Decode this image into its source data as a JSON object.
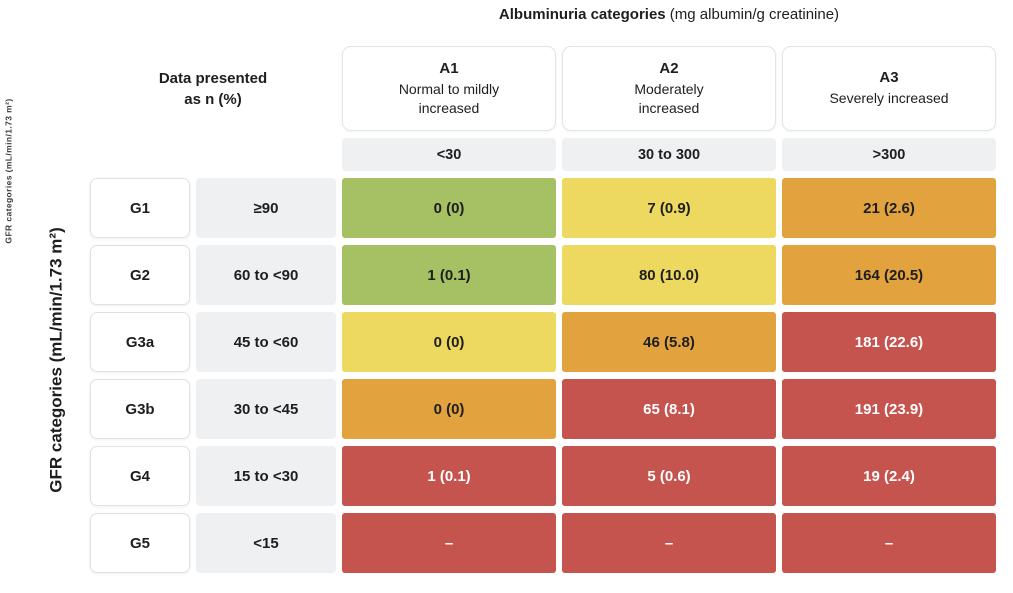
{
  "title": {
    "bold": "Albuminuria categories",
    "normal": " (mg albumin/g creatinine)"
  },
  "axis": {
    "gfr_label_large": "GFR categories (mL/min/1.73 m²)",
    "gfr_label_small": "GFR categories (mL/min/1.73 m²)",
    "data_note_line1": "Data presented",
    "data_note_line2": "as n (%)"
  },
  "columns": [
    {
      "code": "A1",
      "description": "Normal to mildly increased",
      "range": "<30"
    },
    {
      "code": "A2",
      "description": "Moderately increased",
      "range": "30 to 300"
    },
    {
      "code": "A3",
      "description": "Severely increased",
      "range": ">300"
    }
  ],
  "rows": [
    {
      "code": "G1",
      "range": "≥90",
      "cells": [
        {
          "value": "0 (0)",
          "level": "green"
        },
        {
          "value": "7 (0.9)",
          "level": "yellow"
        },
        {
          "value": "21 (2.6)",
          "level": "orange"
        }
      ]
    },
    {
      "code": "G2",
      "range": "60 to <90",
      "cells": [
        {
          "value": "1 (0.1)",
          "level": "green"
        },
        {
          "value": "80 (10.0)",
          "level": "yellow"
        },
        {
          "value": "164 (20.5)",
          "level": "orange"
        }
      ]
    },
    {
      "code": "G3a",
      "range": "45 to <60",
      "cells": [
        {
          "value": "0 (0)",
          "level": "yellow"
        },
        {
          "value": "46 (5.8)",
          "level": "orange"
        },
        {
          "value": "181 (22.6)",
          "level": "red"
        }
      ]
    },
    {
      "code": "G3b",
      "range": "30 to <45",
      "cells": [
        {
          "value": "0 (0)",
          "level": "orange"
        },
        {
          "value": "65 (8.1)",
          "level": "red"
        },
        {
          "value": "191 (23.9)",
          "level": "red"
        }
      ]
    },
    {
      "code": "G4",
      "range": "15 to <30",
      "cells": [
        {
          "value": "1 (0.1)",
          "level": "red"
        },
        {
          "value": "5 (0.6)",
          "level": "red"
        },
        {
          "value": "19 (2.4)",
          "level": "red"
        }
      ]
    },
    {
      "code": "G5",
      "range": "<15",
      "cells": [
        {
          "value": "–",
          "level": "red"
        },
        {
          "value": "–",
          "level": "red"
        },
        {
          "value": "–",
          "level": "red"
        }
      ]
    }
  ],
  "colors": {
    "green": "#a6c064",
    "yellow": "#edd960",
    "orange": "#e2a33f",
    "red": "#c5534e",
    "cell_gray": "#eef0f1",
    "text_dark": "#1e1e1e",
    "text_on_dark": "#ffffff"
  },
  "chart_data": {
    "type": "heatmap",
    "title": "Albuminuria categories (mg albumin/g creatinine)",
    "xlabel": "Albuminuria categories (mg albumin/g creatinine)",
    "ylabel": "GFR categories (mL/min/1.73 m²)",
    "note": "Data presented as n (%)",
    "x_categories": [
      "A1: Normal to mildly increased (<30)",
      "A2: Moderately increased (30 to 300)",
      "A3: Severely increased (>300)"
    ],
    "y_categories": [
      "G1 (≥90)",
      "G2 (60 to <90)",
      "G3a (45 to <60)",
      "G3b (30 to <45)",
      "G4 (15 to <30)",
      "G5 (<15)"
    ],
    "values_n": [
      [
        0,
        7,
        21
      ],
      [
        1,
        80,
        164
      ],
      [
        0,
        46,
        181
      ],
      [
        0,
        65,
        191
      ],
      [
        1,
        5,
        19
      ],
      [
        null,
        null,
        null
      ]
    ],
    "values_pct": [
      [
        0,
        0.9,
        2.6
      ],
      [
        0.1,
        10.0,
        20.5
      ],
      [
        0,
        5.8,
        22.6
      ],
      [
        0,
        8.1,
        23.9
      ],
      [
        0.1,
        0.6,
        2.4
      ],
      [
        null,
        null,
        null
      ]
    ],
    "cell_labels": [
      [
        "0 (0)",
        "7 (0.9)",
        "21 (2.6)"
      ],
      [
        "1 (0.1)",
        "80 (10.0)",
        "164 (20.5)"
      ],
      [
        "0 (0)",
        "46 (5.8)",
        "181 (22.6)"
      ],
      [
        "0 (0)",
        "65 (8.1)",
        "191 (23.9)"
      ],
      [
        "1 (0.1)",
        "5 (0.6)",
        "19 (2.4)"
      ],
      [
        "–",
        "–",
        "–"
      ]
    ],
    "risk_levels": [
      [
        "green",
        "yellow",
        "orange"
      ],
      [
        "green",
        "yellow",
        "orange"
      ],
      [
        "yellow",
        "orange",
        "red"
      ],
      [
        "orange",
        "red",
        "red"
      ],
      [
        "red",
        "red",
        "red"
      ],
      [
        "red",
        "red",
        "red"
      ]
    ],
    "legend_position": "none",
    "grid": false
  }
}
